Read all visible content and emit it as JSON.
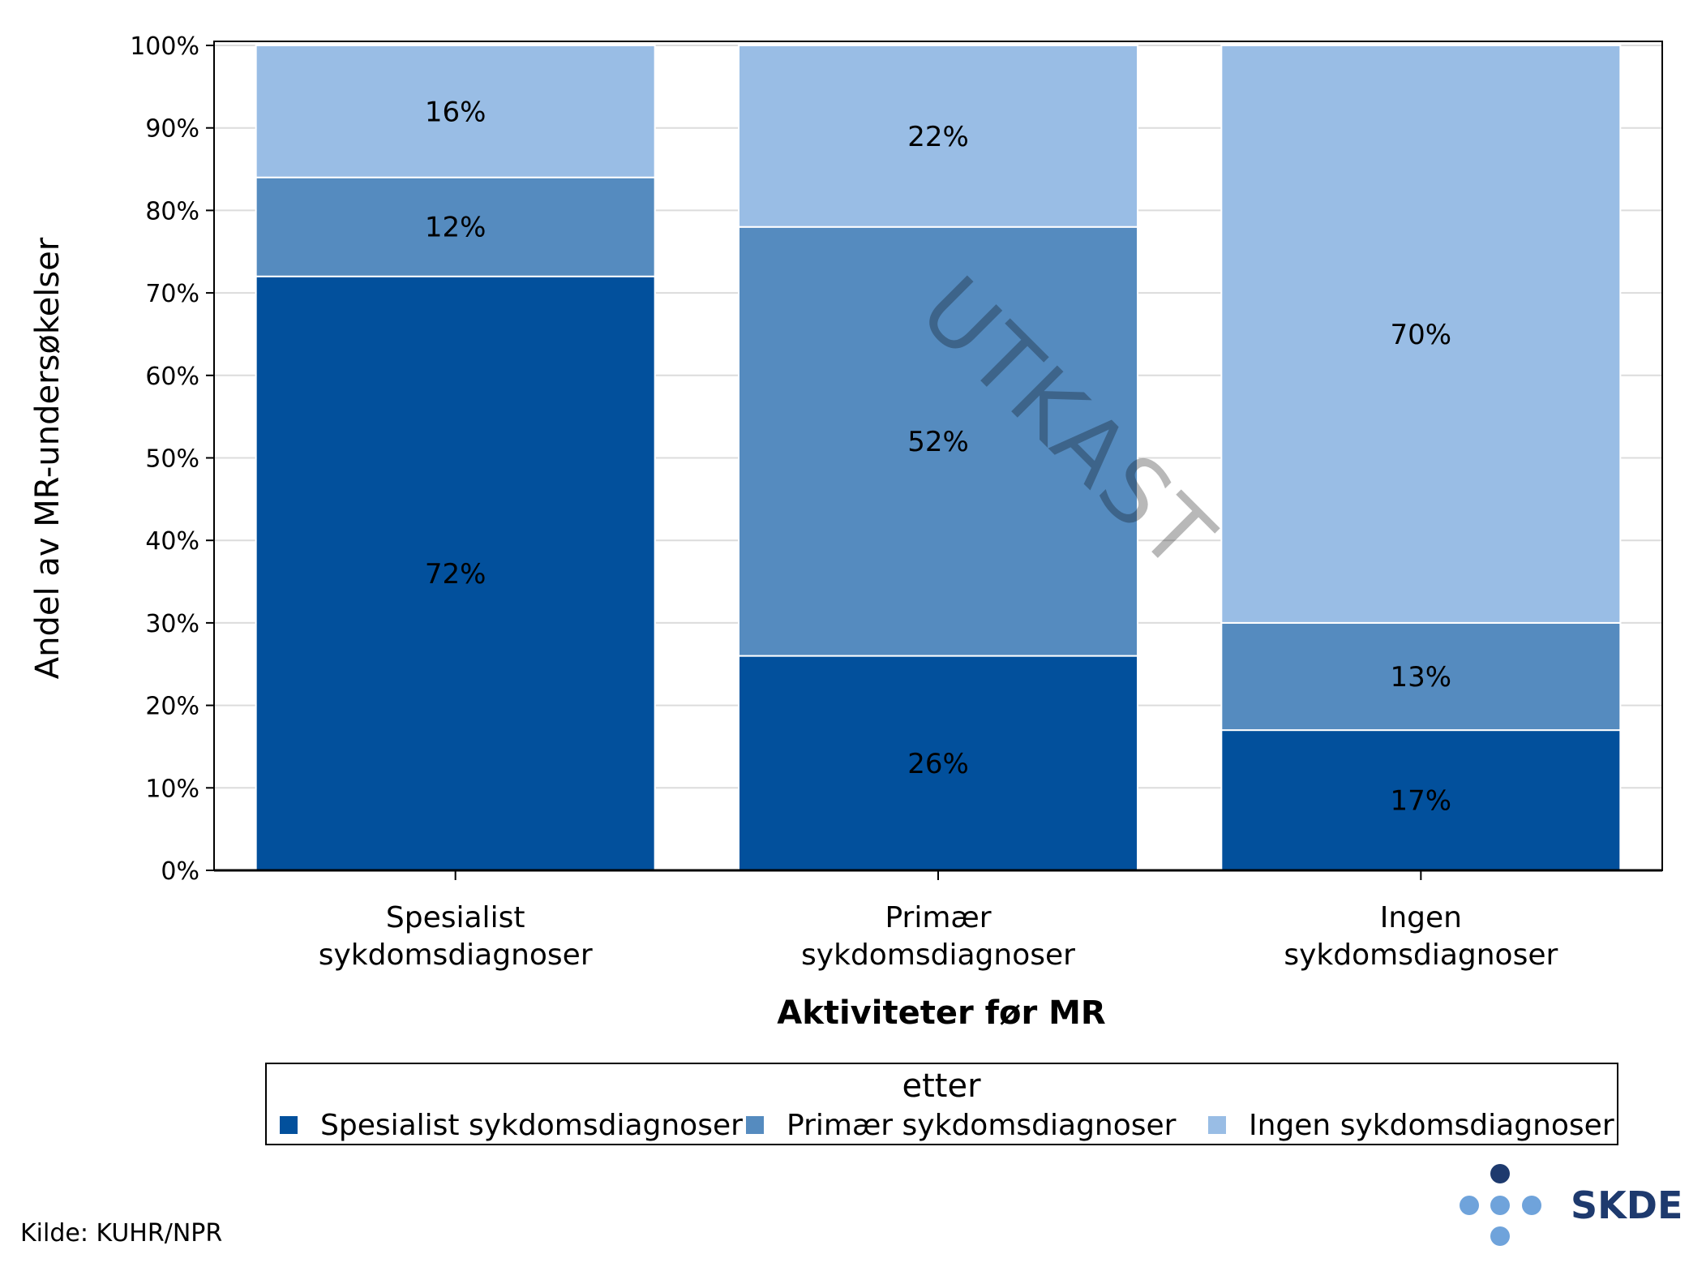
{
  "chart_data": {
    "type": "bar",
    "stacked": true,
    "categories": [
      [
        "Spesialist",
        "sykdomsdiagnoser"
      ],
      [
        "Primær",
        "sykdomsdiagnoser"
      ],
      [
        "Ingen",
        "sykdomsdiagnoser"
      ]
    ],
    "series": [
      {
        "name": "Spesialist sykdomsdiagnoser",
        "values": [
          72,
          26,
          17
        ],
        "labels": [
          "72%",
          "26%",
          "17%"
        ],
        "color": "#02509c"
      },
      {
        "name": "Primær sykdomsdiagnoser",
        "values": [
          12,
          52,
          13
        ],
        "labels": [
          "12%",
          "52%",
          "13%"
        ],
        "color": "#558bbf"
      },
      {
        "name": "Ingen sykdomsdiagnoser",
        "values": [
          16,
          22,
          70
        ],
        "labels": [
          "16%",
          "22%",
          "70%"
        ],
        "color": "#99bde5"
      }
    ],
    "xlabel": "Aktiviteter før MR",
    "ylabel": "Andel av MR-undersøkelser",
    "ylim": [
      0,
      100
    ],
    "yticks": [
      "0%",
      "10%",
      "20%",
      "30%",
      "40%",
      "50%",
      "60%",
      "70%",
      "80%",
      "90%",
      "100%"
    ],
    "grid": true,
    "legend": {
      "title": "etter",
      "placement": "bottom"
    }
  },
  "watermark": "UTKAST",
  "source": "Kilde: KUHR/NPR",
  "logo": {
    "text": "SKDE",
    "dot_dark": "#1e3a6e",
    "dot_light": "#6fa3db"
  }
}
